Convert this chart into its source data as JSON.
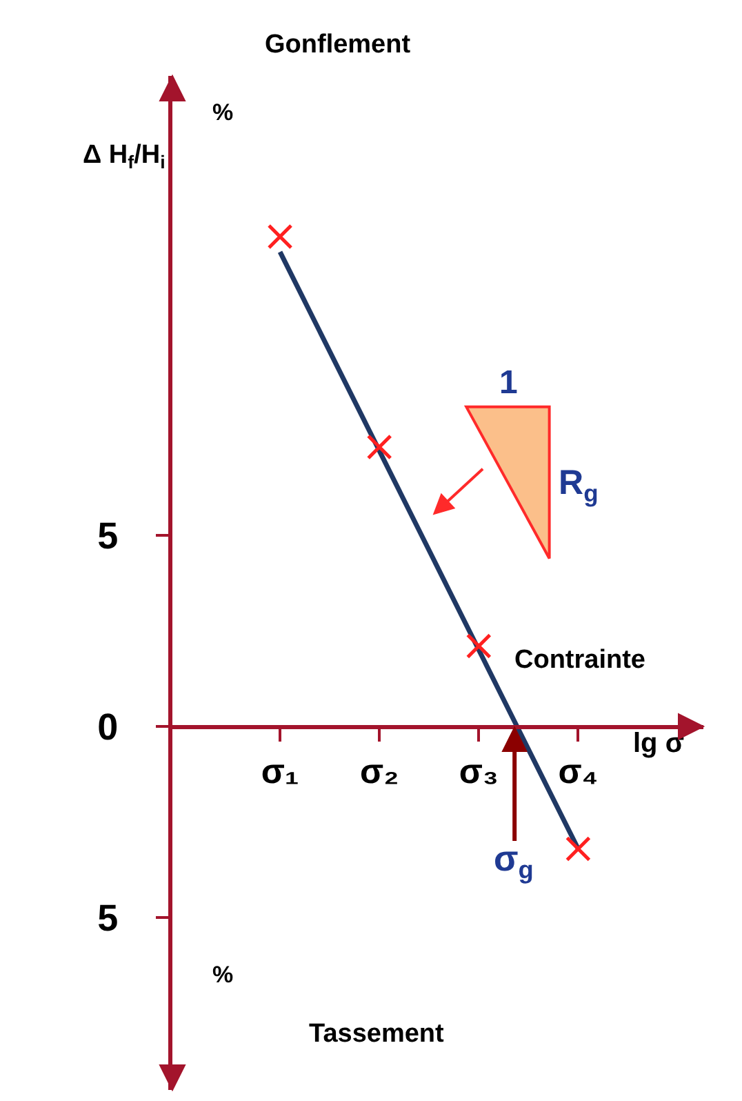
{
  "chart_data": {
    "type": "scatter",
    "ylabel": "Δ H$_{f}$/H$_{i}$",
    "xlabel": "lg σ",
    "annotations": [
      "Gonflement",
      "%",
      "%",
      "Tassement",
      "Contrainte",
      "1",
      "R$_{g}$",
      "σ$_{g}$"
    ],
    "categories": [
      "σ₁",
      "σ₂",
      "σ₃",
      "σ₄"
    ],
    "ylim": [
      -9.5,
      17
    ],
    "yticks": [
      {
        "value": -5,
        "label": "5"
      },
      0,
      5
    ],
    "grid": false,
    "legend": false,
    "series": [
      {
        "color": "#ff2020",
        "marker": "cross",
        "values": [
          12.8,
          7.3,
          2.1,
          -3.2
        ]
      },
      {
        "type": "line",
        "color": "#1f3864",
        "marker": "none",
        "line_style": "solid",
        "x": [
          "σ₁",
          "σ₄"
        ],
        "values": [
          12.4,
          -3.2
        ]
      }
    ]
  }
}
